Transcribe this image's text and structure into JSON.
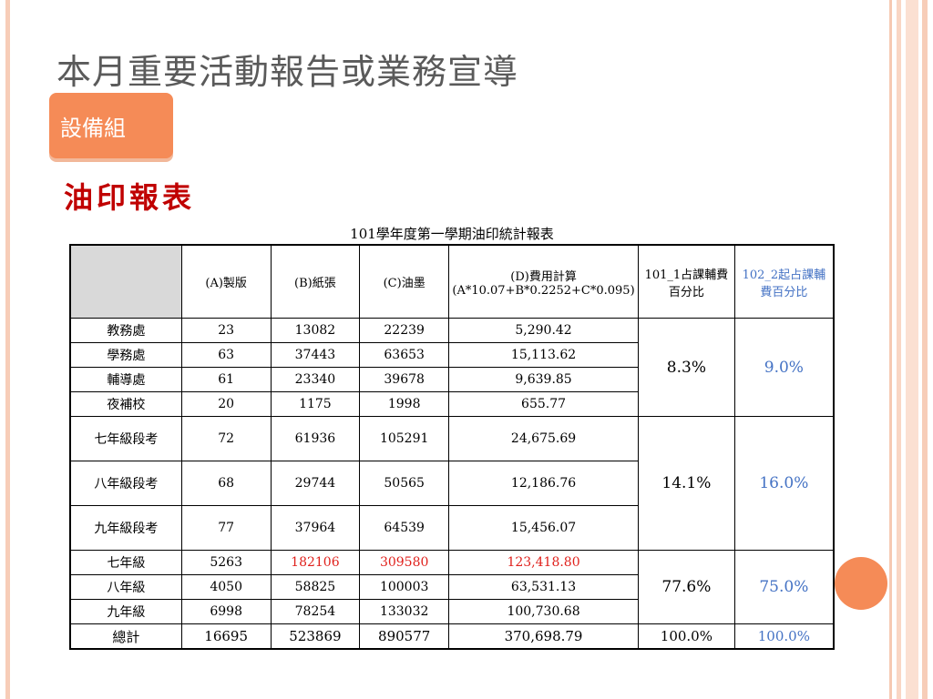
{
  "slide": {
    "title": "本月重要活動報告或業務宣導",
    "badge": "設備組",
    "subheading": "油印報表"
  },
  "table": {
    "caption": "101學年度第一學期油印統計報表",
    "headers": {
      "col0": "",
      "col1": "(A)製版",
      "col2": "(B)紙張",
      "col3": "(C)油墨",
      "col4_line1": "(D)費用計算",
      "col4_line2": "(A*10.07+B*0.2252+C*0.095)",
      "col5": "101_1占課輔費百分比",
      "col6": "102_2起占課輔費百分比"
    },
    "groups": [
      {
        "pct_101": "8.3%",
        "pct_102": "9.0%",
        "rows": [
          {
            "name": "教務處",
            "a": "23",
            "b": "13082",
            "c": "22239",
            "d": "5,290.42"
          },
          {
            "name": "學務處",
            "a": "63",
            "b": "37443",
            "c": "63653",
            "d": "15,113.62"
          },
          {
            "name": "輔導處",
            "a": "61",
            "b": "23340",
            "c": "39678",
            "d": "9,639.85"
          },
          {
            "name": "夜補校",
            "a": "20",
            "b": "1175",
            "c": "1998",
            "d": "655.77"
          }
        ]
      },
      {
        "pct_101": "14.1%",
        "pct_102": "16.0%",
        "rows": [
          {
            "name": "七年級段考",
            "a": "72",
            "b": "61936",
            "c": "105291",
            "d": "24,675.69"
          },
          {
            "name": "八年級段考",
            "a": "68",
            "b": "29744",
            "c": "50565",
            "d": "12,186.76"
          },
          {
            "name": "九年級段考",
            "a": "77",
            "b": "37964",
            "c": "64539",
            "d": "15,456.07"
          }
        ]
      },
      {
        "pct_101": "77.6%",
        "pct_102": "75.0%",
        "rows": [
          {
            "name": "七年級",
            "a": "5263",
            "b": "182106",
            "c": "309580",
            "d": "123,418.80"
          },
          {
            "name": "八年級",
            "a": "4050",
            "b": "58825",
            "c": "100003",
            "d": "63,531.13"
          },
          {
            "name": "九年級",
            "a": "6998",
            "b": "78254",
            "c": "133032",
            "d": "100,730.68"
          }
        ]
      }
    ],
    "total": {
      "name": "總計",
      "a": "16695",
      "b": "523869",
      "c": "890577",
      "d": "370,698.79",
      "pct_101": "100.0%",
      "pct_102": "100.0%"
    }
  },
  "colors": {
    "accent": "#f58b57",
    "heading_red": "#c00000",
    "highlight_red": "#e0211c",
    "blue": "#4472c4"
  }
}
